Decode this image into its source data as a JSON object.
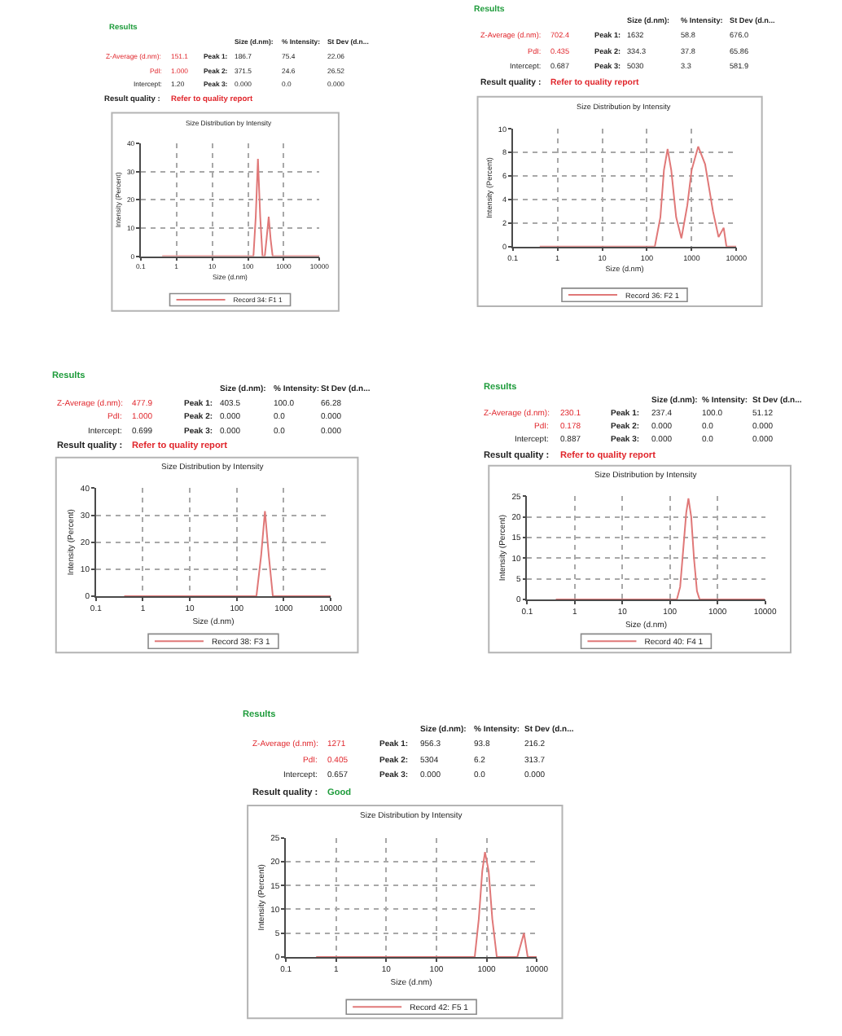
{
  "chart_data": [
    {
      "type": "line",
      "title": "Size Distribution by Intensity",
      "xlabel": "Size (d.nm)",
      "ylabel": "Intensity (Percent)",
      "log": "x",
      "xlim": [
        0.1,
        10000
      ],
      "xticks": [
        0.1,
        1,
        10,
        100,
        1000,
        10000
      ],
      "ylim": [
        0,
        40
      ],
      "yticks": [
        0,
        10,
        20,
        30,
        40
      ],
      "grid": true,
      "legend": "bottom",
      "series": [
        {
          "name": "Record 34: F1 1",
          "color": "#e07878",
          "x": [
            0.4,
            142,
            165,
            190,
            220,
            255,
            295,
            330,
            380,
            430,
            490,
            10000
          ],
          "values": [
            0,
            0,
            14,
            34.5,
            14,
            0,
            0,
            6,
            14,
            6,
            0,
            0
          ]
        }
      ],
      "annotations": [
        "Results",
        "Size (d.nm):",
        "% Intensity:",
        "St Dev (d.n...",
        "Z-Average (d.nm):",
        "151.1",
        "Peak 1:",
        "186.7",
        "75.4",
        "22.06",
        "PdI:",
        "1.000",
        "Peak 2:",
        "371.5",
        "24.6",
        "26.52",
        "Intercept:",
        "1.20",
        "Peak 3:",
        "0.000",
        "0.0",
        "0.000",
        "Result quality :",
        "Refer to quality report"
      ]
    },
    {
      "type": "line",
      "title": "Size Distribution by Intensity",
      "xlabel": "Size (d.nm)",
      "ylabel": "Intensity (Percent)",
      "log": "x",
      "xlim": [
        0.1,
        10000
      ],
      "xticks": [
        0.1,
        1,
        10,
        100,
        1000,
        10000
      ],
      "ylim": [
        0,
        10
      ],
      "yticks": [
        0,
        2,
        4,
        6,
        8,
        10
      ],
      "grid": true,
      "legend": "bottom",
      "series": [
        {
          "name": "Record 36: F2 1",
          "color": "#e07878",
          "x": [
            0.4,
            150,
            200,
            240,
            290,
            350,
            450,
            590,
            800,
            1000,
            1400,
            2000,
            3000,
            4000,
            5200,
            6000,
            10000
          ],
          "values": [
            0,
            0,
            2.5,
            6.5,
            8.3,
            6.5,
            2.5,
            0.7,
            3.5,
            6.5,
            8.5,
            7,
            3,
            0.8,
            1.6,
            0,
            0
          ]
        }
      ],
      "annotations": [
        "Results",
        "Size (d.nm):",
        "% Intensity:",
        "St Dev (d.n...",
        "Z-Average (d.nm):",
        "702.4",
        "Peak 1:",
        "1632",
        "58.8",
        "676.0",
        "PdI:",
        "0.435",
        "Peak 2:",
        "334.3",
        "37.8",
        "65.86",
        "Intercept:",
        "0.687",
        "Peak 3:",
        "5030",
        "3.3",
        "581.9",
        "Result quality :",
        "Refer to quality report"
      ]
    },
    {
      "type": "line",
      "title": "Size Distribution by Intensity",
      "xlabel": "Size (d.nm)",
      "ylabel": "Intensity (Percent)",
      "log": "x",
      "xlim": [
        0.1,
        10000
      ],
      "xticks": [
        0.1,
        1,
        10,
        100,
        1000,
        10000
      ],
      "ylim": [
        0,
        40
      ],
      "yticks": [
        0,
        10,
        20,
        30,
        40
      ],
      "grid": true,
      "legend": "bottom",
      "series": [
        {
          "name": "Record 38: F3 1",
          "color": "#e07878",
          "x": [
            0.4,
            262,
            330,
            398,
            480,
            586,
            10000
          ],
          "values": [
            0,
            0,
            15,
            31.5,
            15,
            0,
            0
          ]
        }
      ],
      "annotations": [
        "Results",
        "Size (d.nm):",
        "% Intensity:",
        "St Dev (d.n...",
        "Z-Average (d.nm):",
        "477.9",
        "Peak 1:",
        "403.5",
        "100.0",
        "66.28",
        "PdI:",
        "1.000",
        "Peak 2:",
        "0.000",
        "0.0",
        "0.000",
        "Intercept:",
        "0.699",
        "Peak 3:",
        "0.000",
        "0.0",
        "0.000",
        "Result quality :",
        "Refer to quality report"
      ]
    },
    {
      "type": "line",
      "title": "Size Distribution by Intensity",
      "xlabel": "Size (d.nm)",
      "ylabel": "Intensity (Percent)",
      "log": "x",
      "xlim": [
        0.1,
        10000
      ],
      "xticks": [
        0.1,
        1,
        10,
        100,
        1000,
        10000
      ],
      "ylim": [
        0,
        25
      ],
      "yticks": [
        0,
        5,
        10,
        15,
        20,
        25
      ],
      "grid": true,
      "legend": "bottom",
      "series": [
        {
          "name": "Record 40: F4 1",
          "color": "#e07878",
          "x": [
            0.4,
            140,
            164,
            190,
            220,
            245,
            280,
            320,
            370,
            420,
            10000
          ],
          "values": [
            0,
            0,
            3,
            12,
            21,
            24.5,
            20,
            10,
            2,
            0,
            0
          ]
        }
      ],
      "annotations": [
        "Results",
        "Size (d.nm):",
        "% Intensity:",
        "St Dev (d.n...",
        "Z-Average (d.nm):",
        "230.1",
        "Peak 1:",
        "237.4",
        "100.0",
        "51.12",
        "PdI:",
        "0.178",
        "Peak 2:",
        "0.000",
        "0.0",
        "0.000",
        "Intercept:",
        "0.887",
        "Peak 3:",
        "0.000",
        "0.0",
        "0.000",
        "Result quality :",
        "Refer to quality report"
      ]
    },
    {
      "type": "line",
      "title": "Size Distribution by Intensity",
      "xlabel": "Size (d.nm)",
      "ylabel": "Intensity (Percent)",
      "log": "x",
      "xlim": [
        0.1,
        10000
      ],
      "xticks": [
        0.1,
        1,
        10,
        100,
        1000,
        10000
      ],
      "ylim": [
        0,
        25
      ],
      "yticks": [
        0,
        5,
        10,
        15,
        20,
        25
      ],
      "grid": true,
      "legend": "bottom",
      "series": [
        {
          "name": "Record 42: F5 1",
          "color": "#e07878",
          "x": [
            0.4,
            580,
            700,
            820,
            930,
            1100,
            1300,
            1600,
            4100,
            5560,
            6600,
            10000
          ],
          "values": [
            0,
            0,
            8,
            18,
            22,
            18,
            8,
            0,
            0,
            5,
            0,
            0
          ]
        }
      ],
      "annotations": [
        "Results",
        "Size (d.nm):",
        "% Intensity:",
        "St Dev (d.n...",
        "Z-Average (d.nm):",
        "1271",
        "Peak 1:",
        "956.3",
        "93.8",
        "216.2",
        "PdI:",
        "0.405",
        "Peak 2:",
        "5304",
        "6.2",
        "313.7",
        "Intercept:",
        "0.657",
        "Peak 3:",
        "0.000",
        "0.0",
        "0.000",
        "Result quality :",
        "Good"
      ]
    }
  ]
}
